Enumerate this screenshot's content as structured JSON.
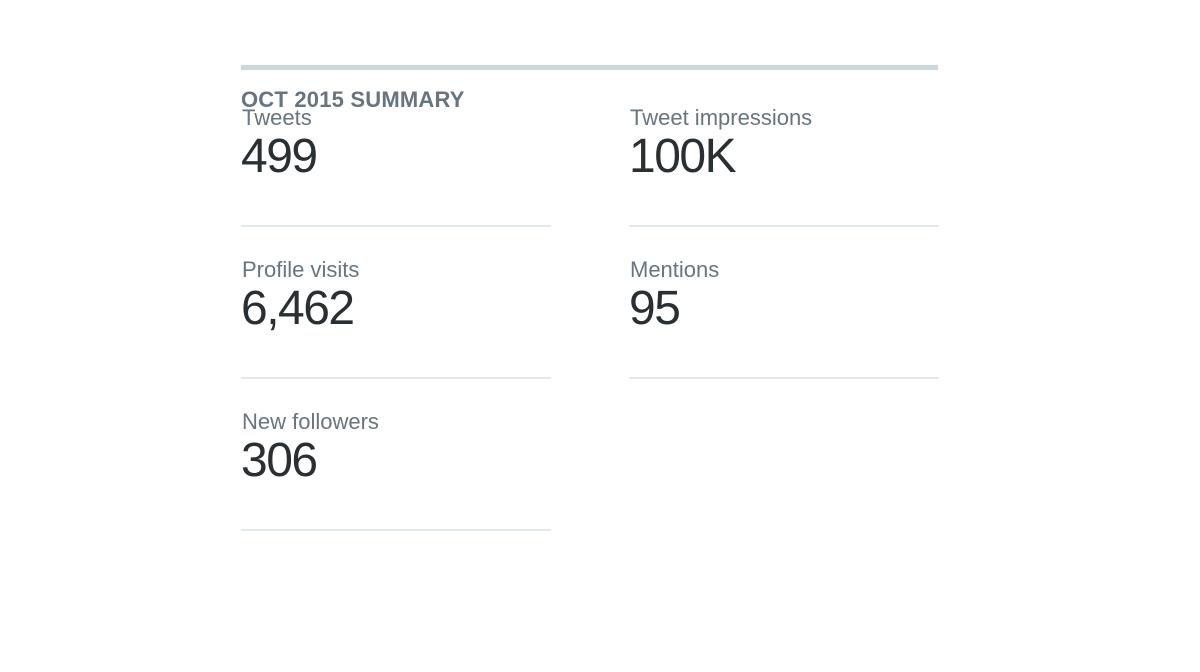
{
  "summary": {
    "heading": "OCT 2015 SUMMARY",
    "stats": [
      {
        "label": "Tweets",
        "value": "499"
      },
      {
        "label": "Tweet impressions",
        "value": "100K"
      },
      {
        "label": "Profile visits",
        "value": "6,462"
      },
      {
        "label": "Mentions",
        "value": "95"
      },
      {
        "label": "New followers",
        "value": "306"
      }
    ]
  }
}
